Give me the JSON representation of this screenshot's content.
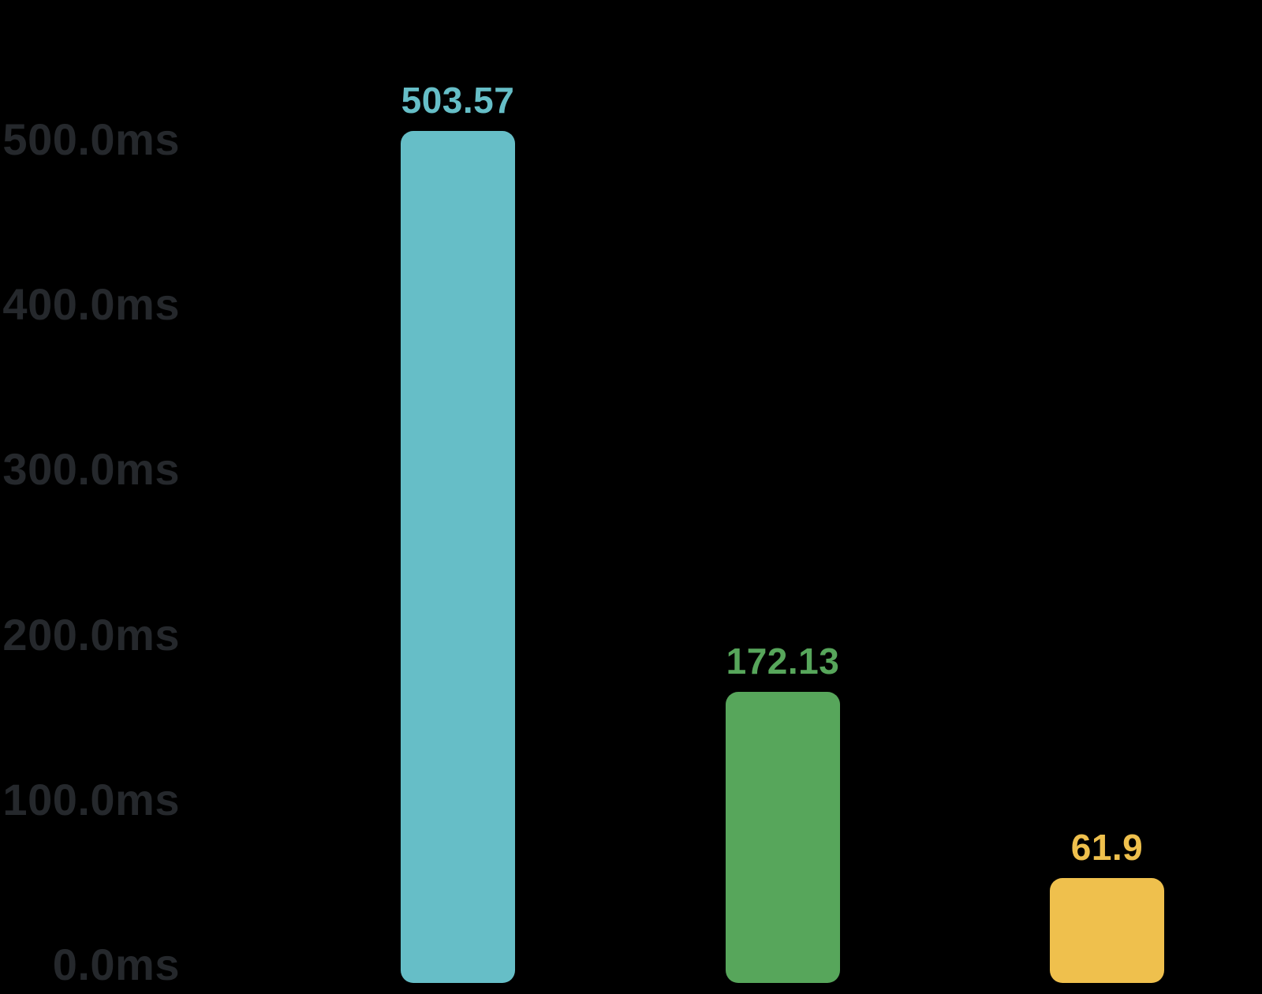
{
  "chart_data": {
    "type": "bar",
    "title": "",
    "xlabel": "",
    "ylabel": "",
    "unit": "ms",
    "categories": [
      "",
      "",
      ""
    ],
    "values": [
      503.57,
      172.13,
      61.9
    ],
    "data_labels": [
      "503.57",
      "172.13",
      "61.9"
    ],
    "colors": [
      "#66bec7",
      "#57a65b",
      "#efc04d"
    ],
    "y_ticks": [
      "500.0ms",
      "400.0ms",
      "300.0ms",
      "200.0ms",
      "100.0ms",
      "0.0ms"
    ],
    "ylim": [
      0,
      500
    ],
    "tick_interval": 100,
    "grid": false,
    "legend": false,
    "background_color": "#000000",
    "axis_label_color": "#25282c"
  }
}
